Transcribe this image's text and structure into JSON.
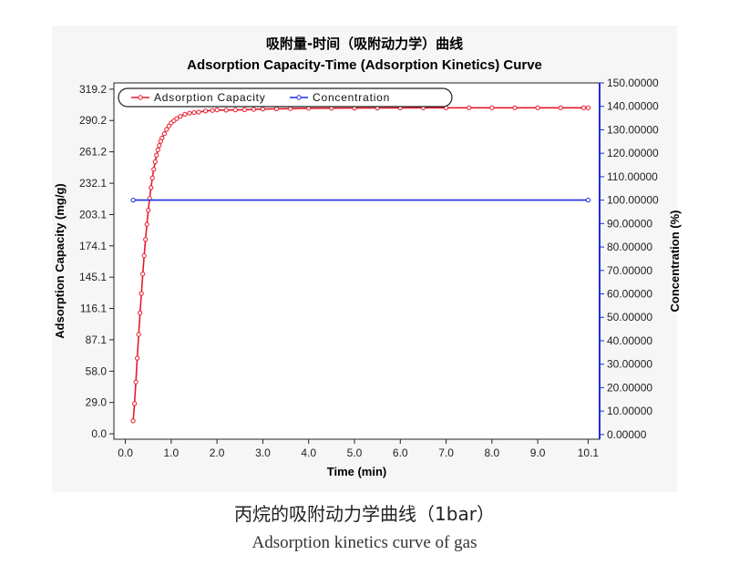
{
  "chart_data": {
    "type": "line",
    "title_cn": "吸附量-时间（吸附动力学）曲线",
    "title": "Adsorption Capacity-Time (Adsorption Kinetics) Curve",
    "xlabel": "Time (min)",
    "ylabel_left": "Adsorption Capacity (mg/g)",
    "ylabel_right": "Concentration (%)",
    "xlim": [
      -0.25,
      10.35
    ],
    "ylim_left": [
      -5,
      325
    ],
    "ylim_right": [
      -2,
      150
    ],
    "x_ticks": [
      "0.0",
      "1.0",
      "2.0",
      "3.0",
      "4.0",
      "5.0",
      "6.0",
      "7.0",
      "8.0",
      "9.0",
      "10.1"
    ],
    "y_left_ticks": [
      "0.0",
      "29.0",
      "58.0",
      "87.1",
      "116.1",
      "145.1",
      "174.1",
      "203.1",
      "232.1",
      "261.2",
      "290.2",
      "319.2"
    ],
    "y_right_ticks": [
      "0.00000",
      "10.00000",
      "20.00000",
      "30.00000",
      "40.00000",
      "50.00000",
      "60.00000",
      "70.00000",
      "80.00000",
      "90.00000",
      "100.00000",
      "110.00000",
      "120.00000",
      "130.00000",
      "140.00000",
      "150.00000"
    ],
    "legend_position": "top-left",
    "grid": false,
    "series": [
      {
        "name": "Adsorption Capacity",
        "axis": "left",
        "color": "#e8192c",
        "x": [
          0.17,
          0.2,
          0.23,
          0.26,
          0.29,
          0.32,
          0.35,
          0.38,
          0.41,
          0.44,
          0.47,
          0.5,
          0.53,
          0.56,
          0.59,
          0.62,
          0.65,
          0.68,
          0.71,
          0.74,
          0.77,
          0.8,
          0.85,
          0.9,
          0.95,
          1.0,
          1.06,
          1.12,
          1.2,
          1.3,
          1.4,
          1.5,
          1.6,
          1.75,
          1.9,
          2.0,
          2.2,
          2.4,
          2.6,
          2.8,
          3.0,
          3.3,
          3.6,
          4.0,
          4.5,
          5.0,
          5.5,
          6.0,
          6.5,
          7.0,
          7.5,
          8.0,
          8.5,
          9.0,
          9.5,
          10.0,
          10.1
        ],
        "values": [
          12,
          28,
          48,
          70,
          92,
          112,
          130,
          148,
          165,
          180,
          194,
          207,
          218,
          228,
          237,
          245,
          252,
          258,
          263,
          267,
          271,
          274,
          278,
          282,
          285,
          288,
          290,
          292,
          294,
          296,
          297,
          297.5,
          298,
          299,
          299.5,
          300,
          299.8,
          300,
          300.2,
          300.5,
          300.8,
          301,
          301.2,
          301.5,
          301.6,
          301.7,
          301.8,
          301.9,
          302,
          302,
          302,
          302,
          302,
          302,
          302,
          302,
          302
        ]
      },
      {
        "name": "Concentration",
        "axis": "right",
        "color": "#1a2ee0",
        "x": [
          0.17,
          10.1
        ],
        "values": [
          100,
          100
        ]
      }
    ]
  },
  "caption": {
    "cn": "丙烷的吸附动力学曲线（1bar）",
    "en": "Adsorption kinetics curve of gas"
  }
}
